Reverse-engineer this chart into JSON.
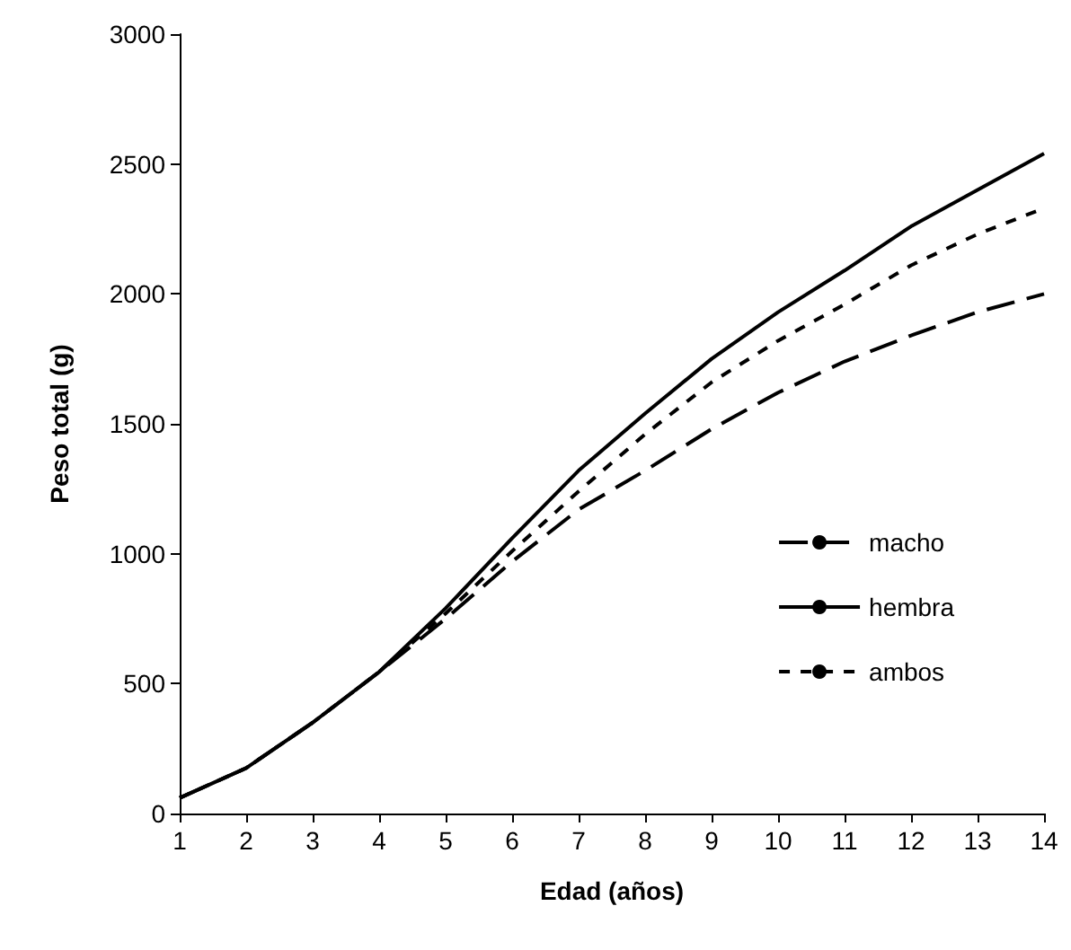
{
  "chart_data": {
    "type": "line",
    "xlabel": "Edad (años)",
    "ylabel": "Peso total (g)",
    "x": [
      1,
      2,
      3,
      4,
      5,
      6,
      7,
      8,
      9,
      10,
      11,
      12,
      13,
      14
    ],
    "xlim": [
      1,
      14
    ],
    "xticks": [
      1,
      2,
      3,
      4,
      5,
      6,
      7,
      8,
      9,
      10,
      11,
      12,
      13,
      14
    ],
    "ylim": [
      0,
      3000
    ],
    "yticks": [
      0,
      500,
      1000,
      1500,
      2000,
      2500,
      3000
    ],
    "grid": false,
    "legend": "right",
    "marker": "none",
    "series": [
      {
        "name": "macho",
        "color": "#000000",
        "line_style": "dashed",
        "values": [
          60,
          175,
          350,
          545,
          750,
          970,
          1170,
          1320,
          1480,
          1620,
          1740,
          1840,
          1930,
          2000
        ]
      },
      {
        "name": "hembra",
        "color": "#000000",
        "line_style": "solid",
        "values": [
          60,
          175,
          350,
          545,
          790,
          1060,
          1320,
          1540,
          1750,
          1930,
          2090,
          2260,
          2400,
          2540
        ]
      },
      {
        "name": "ambos",
        "color": "#000000",
        "line_style": "dotted",
        "values": [
          60,
          175,
          350,
          545,
          770,
          1010,
          1240,
          1460,
          1660,
          1820,
          1960,
          2110,
          2230,
          2330
        ]
      }
    ]
  }
}
